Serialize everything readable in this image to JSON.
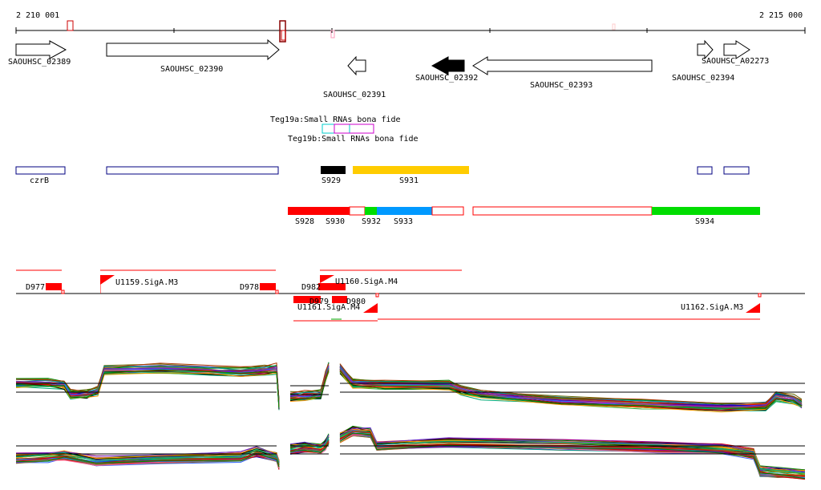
{
  "coords": {
    "start": "2 210 001",
    "end": "2 215 000"
  },
  "genes": [
    {
      "label": "SAOUHSC_02389"
    },
    {
      "label": "SAOUHSC_02390"
    },
    {
      "label": "SAOUHSC_02391"
    },
    {
      "label": "SAOUHSC_02392"
    },
    {
      "label": "SAOUHSC_02393"
    },
    {
      "label": "SAOUHSC_02394"
    },
    {
      "label": "SAOUHSC_A02273"
    }
  ],
  "srna": [
    {
      "label": "Teg19a:Small RNAs bona fide"
    },
    {
      "label": "Teg19b:Small RNAs bona fide"
    }
  ],
  "boxes": [
    {
      "label": "czrB"
    }
  ],
  "segments": [
    {
      "label": "S929"
    },
    {
      "label": "S931"
    },
    {
      "label": "S928"
    },
    {
      "label": "S930"
    },
    {
      "label": "S932"
    },
    {
      "label": "S933"
    },
    {
      "label": "S934"
    }
  ],
  "features": [
    {
      "label": "D977"
    },
    {
      "label": "U1159.SigA.M3"
    },
    {
      "label": "D978"
    },
    {
      "label": "D982"
    },
    {
      "label": "U1160.SigA.M4"
    },
    {
      "label": "D979"
    },
    {
      "label": "D980"
    },
    {
      "label": "U1161.SigA.M4"
    },
    {
      "label": "U1162.SigA.M3"
    }
  ],
  "colors": {
    "red": "#ff0000",
    "navy": "#000080",
    "yellow": "#ffcc00",
    "green": "#00dd00",
    "blue": "#0099ff",
    "cyan": "#00cccc",
    "magenta": "#cc00cc",
    "maroon": "#880000"
  }
}
